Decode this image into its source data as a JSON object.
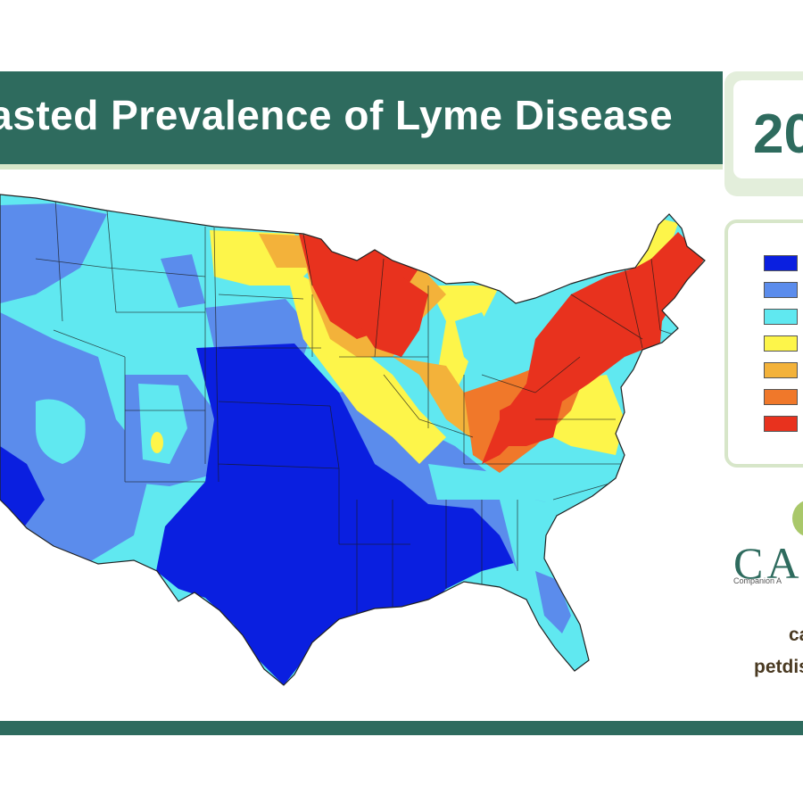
{
  "header": {
    "title": "ecasted Prevalence of Lyme Disease",
    "year_partial": "20"
  },
  "legend": {
    "colors": [
      "#0a1fe0",
      "#5b8cec",
      "#60e8f0",
      "#fdf54a",
      "#f3b23a",
      "#f0782a",
      "#e8321e"
    ],
    "labels": []
  },
  "map": {
    "subject": "Lyme disease forecasted prevalence, contiguous United States",
    "region_colors": {
      "very_low": "#0a1fe0",
      "low": "#5b8cec",
      "moderate_low": "#60e8f0",
      "moderate": "#fdf54a",
      "elevated": "#f3b23a",
      "high": "#f0782a",
      "very_high": "#e8321e"
    }
  },
  "branding": {
    "logo_text": "CA",
    "logo_subtext": "Companion A",
    "link_1": "ca",
    "link_2": "petdis"
  },
  "colors": {
    "brand_green": "#2e6b5e",
    "light_green": "#d7e6c9",
    "link_brown": "#4a3a22"
  }
}
